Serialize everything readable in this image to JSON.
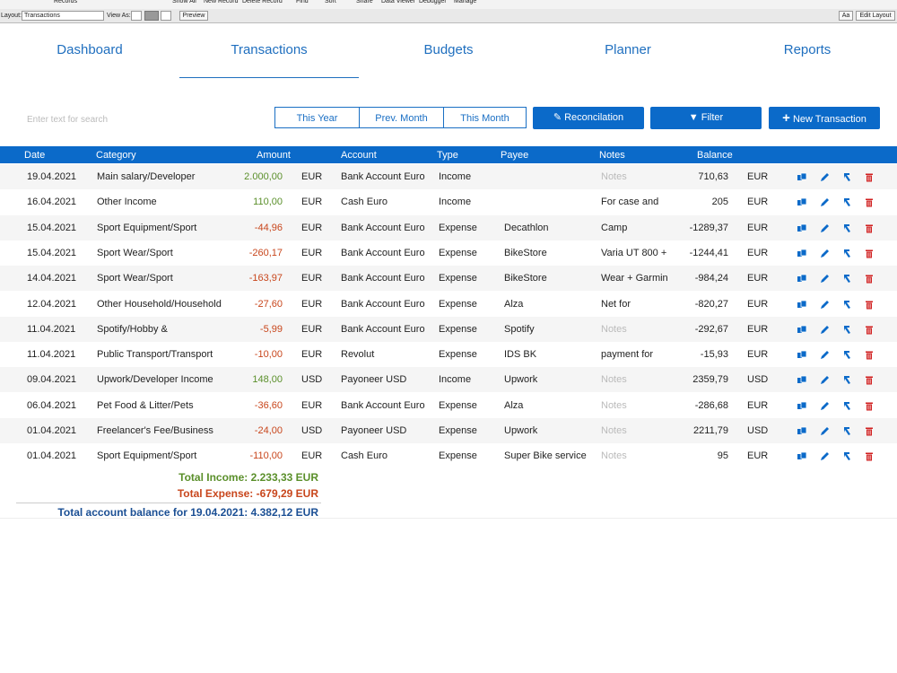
{
  "toolbar": {
    "items": [
      "Records",
      "Show All",
      "New Record",
      "Delete Record",
      "Find",
      "Sort",
      "Share",
      "Data Viewer",
      "Debugger",
      "Manage"
    ]
  },
  "layout_bar": {
    "layout_label": "Layout:",
    "layout_value": "Transactions",
    "view_as": "View As:",
    "preview": "Preview",
    "font_button": "Aa",
    "edit_layout": "Edit Layout"
  },
  "nav": {
    "tabs": [
      "Dashboard",
      "Transactions",
      "Budgets",
      "Planner",
      "Reports"
    ],
    "active": 1
  },
  "search": {
    "placeholder": "Enter text for search"
  },
  "period_buttons": [
    "This Year",
    "Prev. Month",
    "This Month"
  ],
  "action_buttons": [
    "Reconcilation",
    "Filter",
    "New Transaction"
  ],
  "table": {
    "headers": [
      "Date",
      "Category",
      "Amount",
      "Account",
      "Type",
      "Payee",
      "Notes",
      "Balance"
    ],
    "rows": [
      [
        "19.04.2021",
        "Main salary/Developer",
        "2.000,00",
        "EUR",
        "Bank Account Euro",
        "Income",
        "",
        "Notes",
        "710,63",
        "EUR"
      ],
      [
        "16.04.2021",
        "Other Income",
        "110,00",
        "EUR",
        "Cash Euro",
        "Income",
        "",
        "For case and",
        "205",
        "EUR"
      ],
      [
        "15.04.2021",
        "Sport Equipment/Sport",
        "-44,96",
        "EUR",
        "Bank Account Euro",
        "Expense",
        "Decathlon",
        "Camp",
        "-1289,37",
        "EUR"
      ],
      [
        "15.04.2021",
        "Sport Wear/Sport",
        "-260,17",
        "EUR",
        "Bank Account Euro",
        "Expense",
        "BikeStore",
        "Varia UT 800 +",
        "-1244,41",
        "EUR"
      ],
      [
        "14.04.2021",
        "Sport Wear/Sport",
        "-163,97",
        "EUR",
        "Bank Account Euro",
        "Expense",
        "BikeStore",
        "Wear + Garmin",
        "-984,24",
        "EUR"
      ],
      [
        "12.04.2021",
        "Other Household/Household",
        "-27,60",
        "EUR",
        "Bank Account Euro",
        "Expense",
        "Alza",
        "Net for",
        "-820,27",
        "EUR"
      ],
      [
        "11.04.2021",
        "Spotify/Hobby &",
        "-5,99",
        "EUR",
        "Bank Account Euro",
        "Expense",
        "Spotify",
        "Notes",
        "-292,67",
        "EUR"
      ],
      [
        "11.04.2021",
        "Public Transport/Transport",
        "-10,00",
        "EUR",
        "Revolut",
        "Expense",
        "IDS BK",
        "payment for",
        "-15,93",
        "EUR"
      ],
      [
        "09.04.2021",
        "Upwork/Developer Income",
        "148,00",
        "USD",
        "Payoneer USD",
        "Income",
        "Upwork",
        "Notes",
        "2359,79",
        "USD"
      ],
      [
        "06.04.2021",
        "Pet Food & Litter/Pets",
        "-36,60",
        "EUR",
        "Bank Account Euro",
        "Expense",
        "Alza",
        "Notes",
        "-286,68",
        "EUR"
      ],
      [
        "01.04.2021",
        "Freelancer's Fee/Business",
        "-24,00",
        "USD",
        "Payoneer USD",
        "Expense",
        "Upwork",
        "Notes",
        "2211,79",
        "USD"
      ],
      [
        "01.04.2021",
        "Sport Equipment/Sport",
        "-110,00",
        "EUR",
        "Cash Euro",
        "Expense",
        "Super Bike service",
        "Notes",
        "95",
        "EUR"
      ]
    ],
    "placeholder_notes": "Notes"
  },
  "totals": {
    "income": "Total Income: 2.233,33 EUR",
    "expense": "Total Expense: -679,29 EUR",
    "balance": "Total account balance for 19.04.2021: 4.382,12 EUR"
  }
}
